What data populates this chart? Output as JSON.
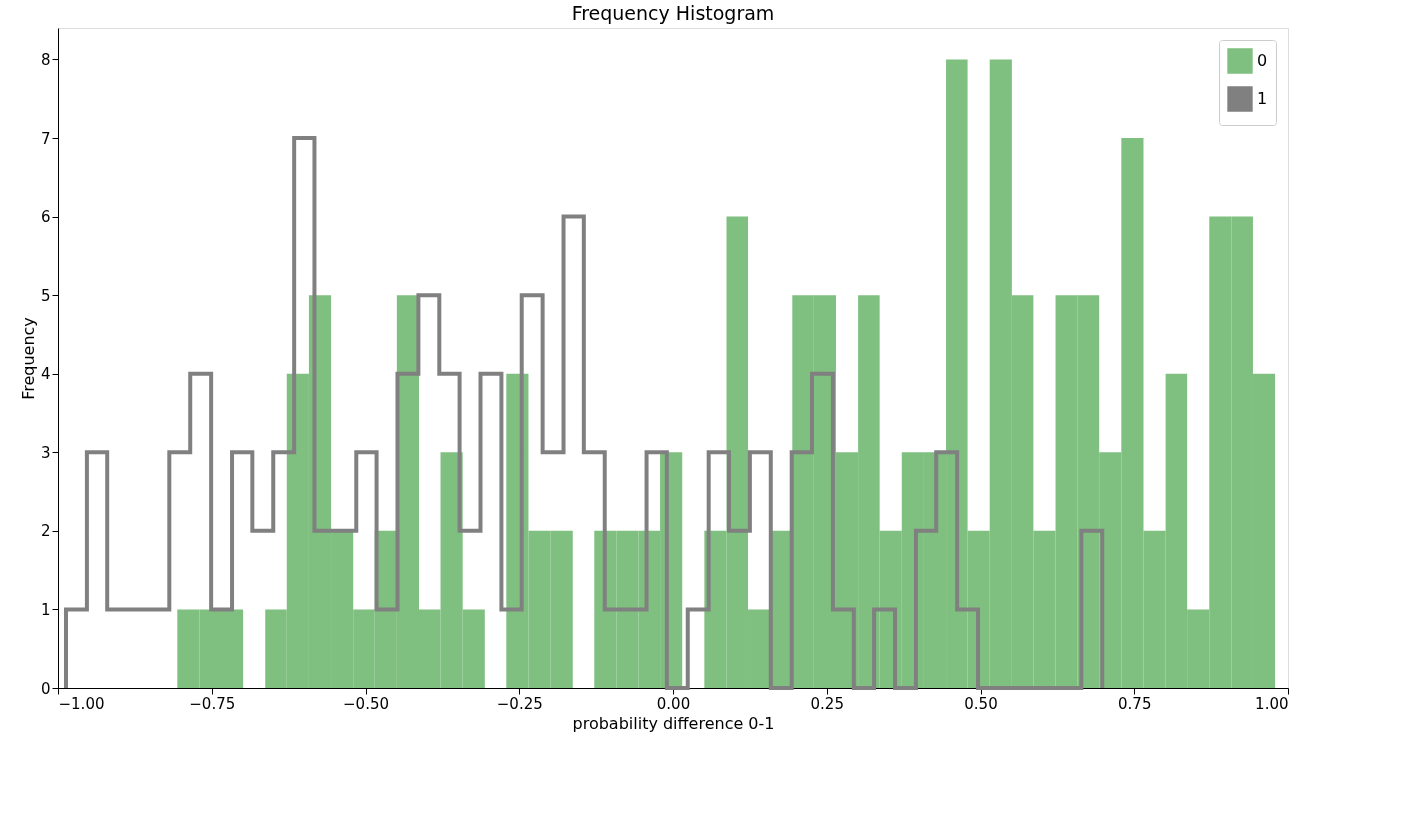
{
  "chart_data": {
    "type": "histogram",
    "title": "Frequency Histogram",
    "xlabel": "probability difference 0-1",
    "ylabel": "Frequency",
    "xlim": [
      -1,
      1
    ],
    "ylim": [
      0,
      8.4
    ],
    "xticks": [
      {
        "value": -1,
        "label": "−1.00"
      },
      {
        "value": -0.75,
        "label": "−0.75"
      },
      {
        "value": -0.5,
        "label": "−0.50"
      },
      {
        "value": -0.25,
        "label": "−0.25"
      },
      {
        "value": 0,
        "label": "0.00"
      },
      {
        "value": 0.25,
        "label": "0.25"
      },
      {
        "value": 0.5,
        "label": "0.50"
      },
      {
        "value": 0.75,
        "label": "0.75"
      },
      {
        "value": 1,
        "label": "1.00"
      }
    ],
    "yticks": [
      0,
      1,
      2,
      3,
      4,
      5,
      6,
      7,
      8
    ],
    "grid": false,
    "legend": "top right",
    "bins": [
      -0.806,
      -0.77,
      -0.735,
      -0.699,
      -0.663,
      -0.628,
      -0.592,
      -0.556,
      -0.52,
      -0.485,
      -0.449,
      -0.413,
      -0.378,
      -0.342,
      -0.306,
      -0.271,
      -0.235,
      -0.199,
      -0.163,
      -0.128,
      -0.092,
      -0.056,
      -0.021,
      0.015,
      0.051,
      0.087,
      0.122,
      0.158,
      0.194,
      0.229,
      0.265,
      0.301,
      0.336,
      0.372,
      0.408,
      0.444,
      0.479,
      0.515,
      0.551,
      0.586,
      0.622,
      0.658,
      0.693,
      0.729,
      0.765,
      0.801,
      0.836,
      0.872,
      0.908,
      0.943,
      0.979
    ],
    "series": [
      {
        "name": "0",
        "type": "histogram",
        "color": "#7fbf7f",
        "values": [
          1,
          1,
          1,
          0,
          1,
          4,
          5,
          2,
          1,
          2,
          5,
          1,
          3,
          1,
          0,
          4,
          2,
          2,
          0,
          2,
          2,
          2,
          3,
          0,
          2,
          6,
          1,
          2,
          5,
          5,
          3,
          5,
          2,
          3,
          3,
          8,
          2,
          8,
          5,
          2,
          5,
          5,
          3,
          7,
          2,
          4,
          1,
          6,
          6,
          4
        ]
      },
      {
        "name": "1",
        "type": "step",
        "color": "#808080",
        "x": [
          -0.987,
          -0.987,
          -0.953,
          -0.92,
          -0.886,
          -0.852,
          -0.819,
          -0.785,
          -0.751,
          -0.717,
          -0.684,
          -0.65,
          -0.616,
          -0.583,
          -0.549,
          -0.515,
          -0.482,
          -0.448,
          -0.414,
          -0.38,
          -0.347,
          -0.313,
          -0.279,
          -0.246,
          -0.212,
          -0.178,
          -0.145,
          -0.111,
          -0.077,
          -0.043,
          -0.01,
          0.024,
          0.058,
          0.091,
          0.125,
          0.159,
          0.193,
          0.226,
          0.26,
          0.294,
          0.327,
          0.361,
          0.395,
          0.428,
          0.462,
          0.496,
          0.53,
          0.563,
          0.597,
          0.631,
          0.664,
          0.698
        ],
        "values": [
          0,
          1,
          3,
          1,
          1,
          1,
          3,
          4,
          1,
          3,
          2,
          3,
          7,
          2,
          2,
          3,
          1,
          4,
          5,
          4,
          2,
          4,
          1,
          5,
          3,
          6,
          3,
          1,
          1,
          3,
          0,
          1,
          3,
          2,
          3,
          0,
          3,
          4,
          1,
          0,
          1,
          0,
          2,
          3,
          1,
          0,
          0,
          0,
          0,
          0,
          2,
          0
        ]
      }
    ]
  }
}
